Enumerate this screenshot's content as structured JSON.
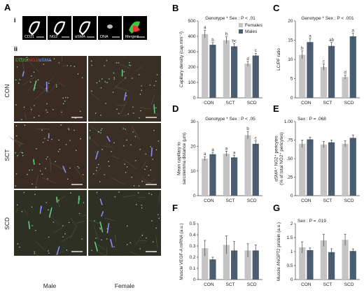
{
  "panel_labels": {
    "A": "A",
    "i": "i",
    "ii": "ii",
    "B": "B",
    "C": "C",
    "D": "D",
    "E": "E",
    "F": "F",
    "G": "G"
  },
  "thumbnails": [
    "CD31",
    "NG2",
    "αSMA",
    "DNA",
    "Merged"
  ],
  "stain_legend": [
    "CD31",
    "NG2",
    "αSMA"
  ],
  "stain_colors": [
    "#3cc93c",
    "#e83a3a",
    "#6aa7ff"
  ],
  "rows": [
    "CON",
    "SCT",
    "SCD"
  ],
  "columns": [
    "Male",
    "Female"
  ],
  "colors": {
    "females": "#c4c4c4",
    "males": "#4b5d70"
  },
  "chart_data": [
    {
      "id": "B",
      "type": "bar",
      "title": "Genotype * Sex : P < .01",
      "ylabel": "Capillary density (cap.mm⁻²)",
      "categories": [
        "CON",
        "SCT",
        "SCD"
      ],
      "ylim": [
        0,
        500
      ],
      "yticks": [
        0,
        100,
        200,
        300,
        400,
        500
      ],
      "legend": [
        "Females",
        "Males"
      ],
      "series": [
        {
          "name": "Females",
          "values": [
            415,
            375,
            222
          ],
          "errors": [
            25,
            22,
            15
          ],
          "letters": [
            "a",
            "b",
            "d"
          ]
        },
        {
          "name": "Males",
          "values": [
            345,
            335,
            275
          ],
          "errors": [
            15,
            18,
            15
          ],
          "letters": [
            "b",
            "bc",
            "c"
          ]
        }
      ]
    },
    {
      "id": "C",
      "type": "bar",
      "title": "Genotype * Sex : P < .001",
      "ylabel": "LC/PF ratio",
      "categories": [
        "CON",
        "SCT",
        "SCD"
      ],
      "ylim": [
        0,
        20
      ],
      "yticks": [
        0,
        5,
        10,
        15,
        20
      ],
      "series": [
        {
          "name": "Females",
          "values": [
            11.2,
            8.0,
            5.4
          ],
          "errors": [
            1.0,
            0.8,
            0.5
          ],
          "letters": [
            "b",
            "c",
            "d"
          ]
        },
        {
          "name": "Males",
          "values": [
            14.5,
            13.5,
            16.0
          ],
          "errors": [
            0.9,
            0.9,
            0.8
          ],
          "letters": [
            "a",
            "ab",
            "a"
          ]
        }
      ]
    },
    {
      "id": "D",
      "type": "bar",
      "title": "Genotype * Sex : P < .05",
      "ylabel": "Mean capillary to sarcolemma distance (μm)",
      "categories": [
        "CON",
        "SCT",
        "SCD"
      ],
      "ylim": [
        0,
        30
      ],
      "yticks": [
        0,
        10,
        20,
        30
      ],
      "series": [
        {
          "name": "Females",
          "values": [
            15.0,
            17.0,
            24.5
          ],
          "errors": [
            0.8,
            1.0,
            1.5
          ],
          "letters": [
            "a",
            "a",
            "b"
          ]
        },
        {
          "name": "Males",
          "values": [
            16.8,
            15.5,
            21.0
          ],
          "errors": [
            0.8,
            0.8,
            1.2
          ],
          "letters": [
            "a",
            "a",
            "c"
          ]
        }
      ]
    },
    {
      "id": "E",
      "type": "bar",
      "title": "Sex : P = .068",
      "ylabel": "αSMA⁺ NG2⁺ pericytes (% of total NG2⁺ pericytes)",
      "categories": [
        "CON",
        "SCT",
        "SCD"
      ],
      "ylim": [
        0,
        1
      ],
      "yticks": [
        0,
        0.25,
        0.5,
        0.75,
        1.0
      ],
      "yticklabels": [
        "0",
        ".25",
        ".50",
        ".75",
        "1.00"
      ],
      "series": [
        {
          "name": "Females",
          "values": [
            0.7,
            0.69,
            0.7
          ],
          "errors": [
            0.05,
            0.04,
            0.04
          ]
        },
        {
          "name": "Males",
          "values": [
            0.76,
            0.72,
            0.78
          ],
          "errors": [
            0.03,
            0.03,
            0.04
          ]
        }
      ]
    },
    {
      "id": "F",
      "type": "bar",
      "title": "",
      "ylabel": "Muscle VEGF-A mRNA (a.u.)",
      "categories": [
        "CON",
        "SCT",
        "SCD"
      ],
      "ylim": [
        0,
        0.5
      ],
      "yticks": [
        0,
        0.1,
        0.2,
        0.3,
        0.4,
        0.5
      ],
      "yticklabels": [
        "0",
        "0.1",
        "0.2",
        "0.3",
        "0.4",
        "0.5"
      ],
      "series": [
        {
          "name": "Females",
          "values": [
            0.28,
            0.31,
            0.26
          ],
          "errors": [
            0.07,
            0.08,
            0.06
          ]
        },
        {
          "name": "Males",
          "values": [
            0.18,
            0.26,
            0.26
          ],
          "errors": [
            0.02,
            0.08,
            0.05
          ]
        }
      ]
    },
    {
      "id": "G",
      "type": "bar",
      "title": "Sex : P = .019",
      "ylabel": "Muscle ANGPT2 protein (a.u.)",
      "categories": [
        "CON",
        "SCT",
        "SCD"
      ],
      "ylim": [
        0,
        2
      ],
      "yticks": [
        0,
        0.5,
        1,
        1.5,
        2
      ],
      "yticklabels": [
        "0",
        "0.5",
        "1",
        "1.5",
        "2"
      ],
      "series": [
        {
          "name": "Females",
          "values": [
            1.15,
            1.4,
            1.42
          ],
          "errors": [
            0.2,
            0.22,
            0.2
          ]
        },
        {
          "name": "Males",
          "values": [
            1.05,
            0.98,
            1.02
          ],
          "errors": [
            0.08,
            0.12,
            0.08
          ]
        }
      ]
    }
  ]
}
